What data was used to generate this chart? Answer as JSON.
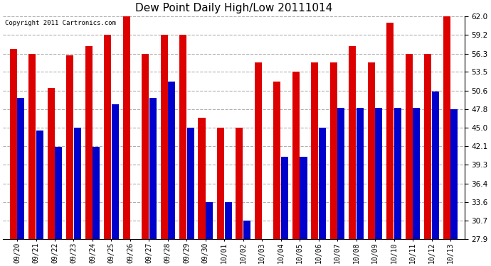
{
  "title": "Dew Point Daily High/Low 20111014",
  "copyright": "Copyright 2011 Cartronics.com",
  "categories": [
    "09/20",
    "09/21",
    "09/22",
    "09/23",
    "09/24",
    "09/25",
    "09/26",
    "09/27",
    "09/28",
    "09/29",
    "09/30",
    "10/01",
    "10/02",
    "10/03",
    "10/04",
    "10/05",
    "10/06",
    "10/07",
    "10/08",
    "10/09",
    "10/10",
    "10/11",
    "10/12",
    "10/13"
  ],
  "high_values": [
    57.0,
    56.3,
    51.0,
    56.0,
    57.5,
    59.2,
    62.0,
    56.3,
    59.2,
    59.2,
    46.5,
    45.0,
    45.0,
    55.0,
    52.0,
    53.5,
    55.0,
    55.0,
    57.5,
    55.0,
    61.0,
    56.3,
    56.3,
    62.0
  ],
  "low_values": [
    49.5,
    44.5,
    42.0,
    45.0,
    42.0,
    48.5,
    27.9,
    49.5,
    52.0,
    45.0,
    33.6,
    33.6,
    30.7,
    27.9,
    40.5,
    40.5,
    45.0,
    48.0,
    48.0,
    48.0,
    48.0,
    48.0,
    50.5,
    47.8
  ],
  "high_color": "#dd0000",
  "low_color": "#0000cc",
  "bg_color": "#ffffff",
  "grid_color": "#b0b0b0",
  "ylim_min": 27.9,
  "ylim_max": 62.0,
  "yticks": [
    27.9,
    30.7,
    33.6,
    36.4,
    39.3,
    42.1,
    45.0,
    47.8,
    50.6,
    53.5,
    56.3,
    59.2,
    62.0
  ]
}
